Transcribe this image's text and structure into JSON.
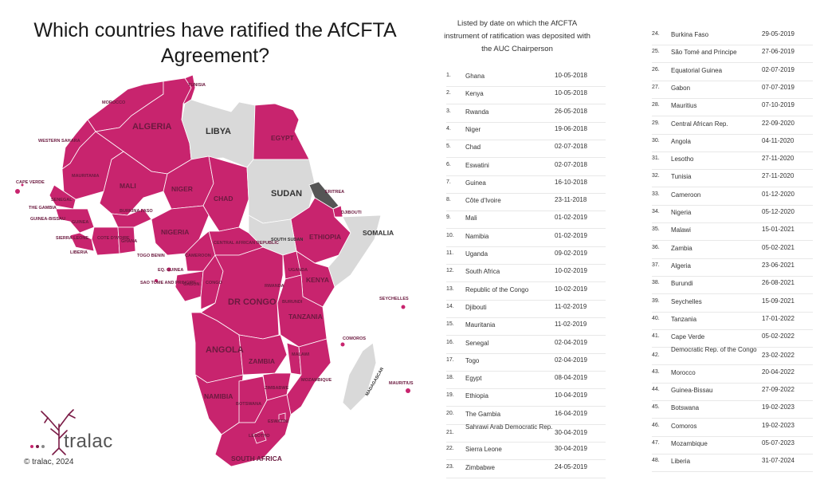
{
  "title": {
    "line1": "Which countries have ratified the AfCFTA",
    "line2": "Agreement?"
  },
  "colors": {
    "ratified": "#c8246e",
    "not_ratified": "#d9d9d9",
    "eritrea": "#555555",
    "border": "#ffffff"
  },
  "map_labels": {
    "tunisia": "TUNISIA",
    "morocco": "MOROCCO",
    "algeria": "ALGERIA",
    "libya": "LIBYA",
    "egypt": "EGYPT",
    "western_sahara": "WESTERN SAHARA",
    "mauritania": "MAURITANIA",
    "mali": "MALI",
    "niger": "NIGER",
    "chad": "CHAD",
    "sudan": "SUDAN",
    "eritrea": "ERITREA",
    "djibouti": "DJIBOUTI",
    "cape_verde": "CAPE VERDE",
    "senegal": "SENEGAL",
    "the_gambia": "THE GAMBIA",
    "guinea_bissau": "GUINEA-BISSAU",
    "guinea": "GUINEA",
    "burkina_faso": "BURKINA FASO",
    "nigeria": "NIGERIA",
    "ethiopia": "ETHIOPIA",
    "somalia": "SOMALIA",
    "sierra_leone": "SIERRA LEONE",
    "liberia": "LIBERIA",
    "cote_divoire": "COTE D'IVOIRE",
    "ghana": "GHANA",
    "togo_benin": "TOGO BENIN",
    "central_african_republic": "CENTRAL AFRICAN REPUBLIC",
    "cameroon": "CAMEROON",
    "south_sudan": "SOUTH SUDAN",
    "eq_guinea": "EQ. GUINEA",
    "sao_tome": "SAO TOME AND PRINCIPE",
    "gabon": "GABON",
    "congo": "CONGO",
    "dr_congo": "DR CONGO",
    "uganda": "UGANDA",
    "kenya": "KENYA",
    "rwanda": "RWANDA",
    "burundi": "BURUNDI",
    "seychelles": "SEYCHELLES",
    "tanzania": "TANZANIA",
    "comoros": "COMOROS",
    "angola": "ANGOLA",
    "zambia": "ZAMBIA",
    "malawi": "MALAWI",
    "mozambique": "MOZAMBIQUE",
    "zimbabwe": "ZIMBABWE",
    "madagascar": "MADAGASCAR",
    "mauritius": "MAURITIUS",
    "namibia": "NAMIBIA",
    "botswana": "BOTSWANA",
    "eswatini": "ESWATINI",
    "lesotho": "LESOTHO",
    "south_africa": "SOUTH AFRICA"
  },
  "list": {
    "header_line1": "Listed by date on which the AfCFTA",
    "header_line2": "instrument of ratification was deposited with",
    "header_line3": "the AUC Chairperson",
    "col1": [
      {
        "n": "1.",
        "country": "Ghana",
        "date": "10-05-2018"
      },
      {
        "n": "2.",
        "country": "Kenya",
        "date": "10-05-2018"
      },
      {
        "n": "3.",
        "country": "Rwanda",
        "date": "26-05-2018"
      },
      {
        "n": "4.",
        "country": "Niger",
        "date": "19-06-2018"
      },
      {
        "n": "5.",
        "country": "Chad",
        "date": "02-07-2018"
      },
      {
        "n": "6.",
        "country": "Eswatini",
        "date": "02-07-2018"
      },
      {
        "n": "7.",
        "country": "Guinea",
        "date": "16-10-2018"
      },
      {
        "n": "8.",
        "country": "Côte d'Ivoire",
        "date": "23-11-2018"
      },
      {
        "n": "9.",
        "country": "Mali",
        "date": "01-02-2019"
      },
      {
        "n": "10.",
        "country": "Namibia",
        "date": "01-02-2019"
      },
      {
        "n": "11.",
        "country": "Uganda",
        "date": "09-02-2019"
      },
      {
        "n": "12.",
        "country": "South Africa",
        "date": "10-02-2019"
      },
      {
        "n": "13.",
        "country": "Republic of the Congo",
        "date": "10-02-2019"
      },
      {
        "n": "14.",
        "country": "Djibouti",
        "date": "11-02-2019"
      },
      {
        "n": "15.",
        "country": "Mauritania",
        "date": "11-02-2019"
      },
      {
        "n": "16.",
        "country": "Senegal",
        "date": "02-04-2019"
      },
      {
        "n": "17.",
        "country": "Togo",
        "date": "02-04-2019"
      },
      {
        "n": "18.",
        "country": "Egypt",
        "date": "08-04-2019"
      },
      {
        "n": "19.",
        "country": "Ethiopia",
        "date": "10-04-2019"
      },
      {
        "n": "20.",
        "country": "The Gambia",
        "date": "16-04-2019"
      },
      {
        "n": "21.",
        "country": "Sahrawi Arab Democratic Rep.",
        "date": "30-04-2019"
      },
      {
        "n": "22.",
        "country": "Sierra Leone",
        "date": "30-04-2019"
      },
      {
        "n": "23.",
        "country": "Zimbabwe",
        "date": "24-05-2019"
      }
    ],
    "col2": [
      {
        "n": "24.",
        "country": "Burkina Faso",
        "date": "29-05-2019"
      },
      {
        "n": "25.",
        "country": "São Tomé and Principe",
        "date": "27-06-2019"
      },
      {
        "n": "26.",
        "country": "Equatorial Guinea",
        "date": "02-07-2019"
      },
      {
        "n": "27.",
        "country": "Gabon",
        "date": "07-07-2019"
      },
      {
        "n": "28.",
        "country": "Mauritius",
        "date": "07-10-2019"
      },
      {
        "n": "29.",
        "country": "Central African Rep.",
        "date": "22-09-2020"
      },
      {
        "n": "30.",
        "country": "Angola",
        "date": "04-11-2020"
      },
      {
        "n": "31.",
        "country": "Lesotho",
        "date": "27-11-2020"
      },
      {
        "n": "32.",
        "country": "Tunisia",
        "date": "27-11-2020"
      },
      {
        "n": "33.",
        "country": "Cameroon",
        "date": "01-12-2020"
      },
      {
        "n": "34.",
        "country": "Nigeria",
        "date": "05-12-2020"
      },
      {
        "n": "35.",
        "country": "Malawi",
        "date": "15-01-2021"
      },
      {
        "n": "36.",
        "country": "Zambia",
        "date": "05-02-2021"
      },
      {
        "n": "37.",
        "country": "Algeria",
        "date": "23-06-2021"
      },
      {
        "n": "38.",
        "country": "Burundi",
        "date": "26-08-2021"
      },
      {
        "n": "39.",
        "country": "Seychelles",
        "date": "15-09-2021"
      },
      {
        "n": "40.",
        "country": "Tanzania",
        "date": "17-01-2022"
      },
      {
        "n": "41.",
        "country": "Cape Verde",
        "date": "05-02-2022"
      },
      {
        "n": "42.",
        "country": "Democratic Rep. of the Congo",
        "date": "23-02-2022"
      },
      {
        "n": "43.",
        "country": "Morocco",
        "date": "20-04-2022"
      },
      {
        "n": "44.",
        "country": "Guinea-Bissau",
        "date": "27-09-2022"
      },
      {
        "n": "45.",
        "country": "Botswana",
        "date": "19-02-2023"
      },
      {
        "n": "46.",
        "country": "Comoros",
        "date": "19-02-2023"
      },
      {
        "n": "47.",
        "country": "Mozambique",
        "date": "05-07-2023"
      },
      {
        "n": "48.",
        "country": "Liberia",
        "date": "31-07-2024"
      }
    ]
  },
  "footer": {
    "logo_text": "tralac",
    "copyright": "© tralac, 2024"
  }
}
